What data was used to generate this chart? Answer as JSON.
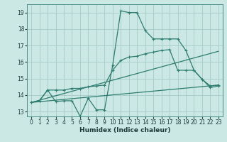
{
  "xlabel": "Humidex (Indice chaleur)",
  "bg_color": "#cce8e4",
  "grid_color": "#aacfcb",
  "line_color": "#2e7d70",
  "xlim": [
    -0.5,
    23.5
  ],
  "ylim": [
    12.7,
    19.5
  ],
  "yticks": [
    13,
    14,
    15,
    16,
    17,
    18,
    19
  ],
  "xticks": [
    0,
    1,
    2,
    3,
    4,
    5,
    6,
    7,
    8,
    9,
    10,
    11,
    12,
    13,
    14,
    15,
    16,
    17,
    18,
    19,
    20,
    21,
    22,
    23
  ],
  "line1_x": [
    0,
    1,
    2,
    3,
    4,
    5,
    6,
    7,
    8,
    9,
    10,
    11,
    12,
    13,
    14,
    15,
    16,
    17,
    18,
    19,
    20,
    21,
    22,
    23
  ],
  "line1_y": [
    13.55,
    13.65,
    14.3,
    13.6,
    13.65,
    13.65,
    12.7,
    13.8,
    13.1,
    13.1,
    15.8,
    19.1,
    19.0,
    19.0,
    17.9,
    17.4,
    17.4,
    17.4,
    17.4,
    16.7,
    15.5,
    14.95,
    14.45,
    14.55
  ],
  "line2_x": [
    0,
    1,
    2,
    3,
    4,
    5,
    6,
    7,
    8,
    9,
    10,
    11,
    12,
    13,
    14,
    15,
    16,
    17,
    18,
    19,
    20,
    21,
    22,
    23
  ],
  "line2_y": [
    13.55,
    13.65,
    14.3,
    14.3,
    14.3,
    14.4,
    14.4,
    14.5,
    14.55,
    14.6,
    15.5,
    16.1,
    16.3,
    16.35,
    16.5,
    16.6,
    16.7,
    16.75,
    15.5,
    15.5,
    15.5,
    14.95,
    14.55,
    14.6
  ],
  "line3_x": [
    0,
    23
  ],
  "line3_y": [
    13.55,
    16.65
  ],
  "line4_x": [
    0,
    23
  ],
  "line4_y": [
    13.55,
    14.6
  ]
}
